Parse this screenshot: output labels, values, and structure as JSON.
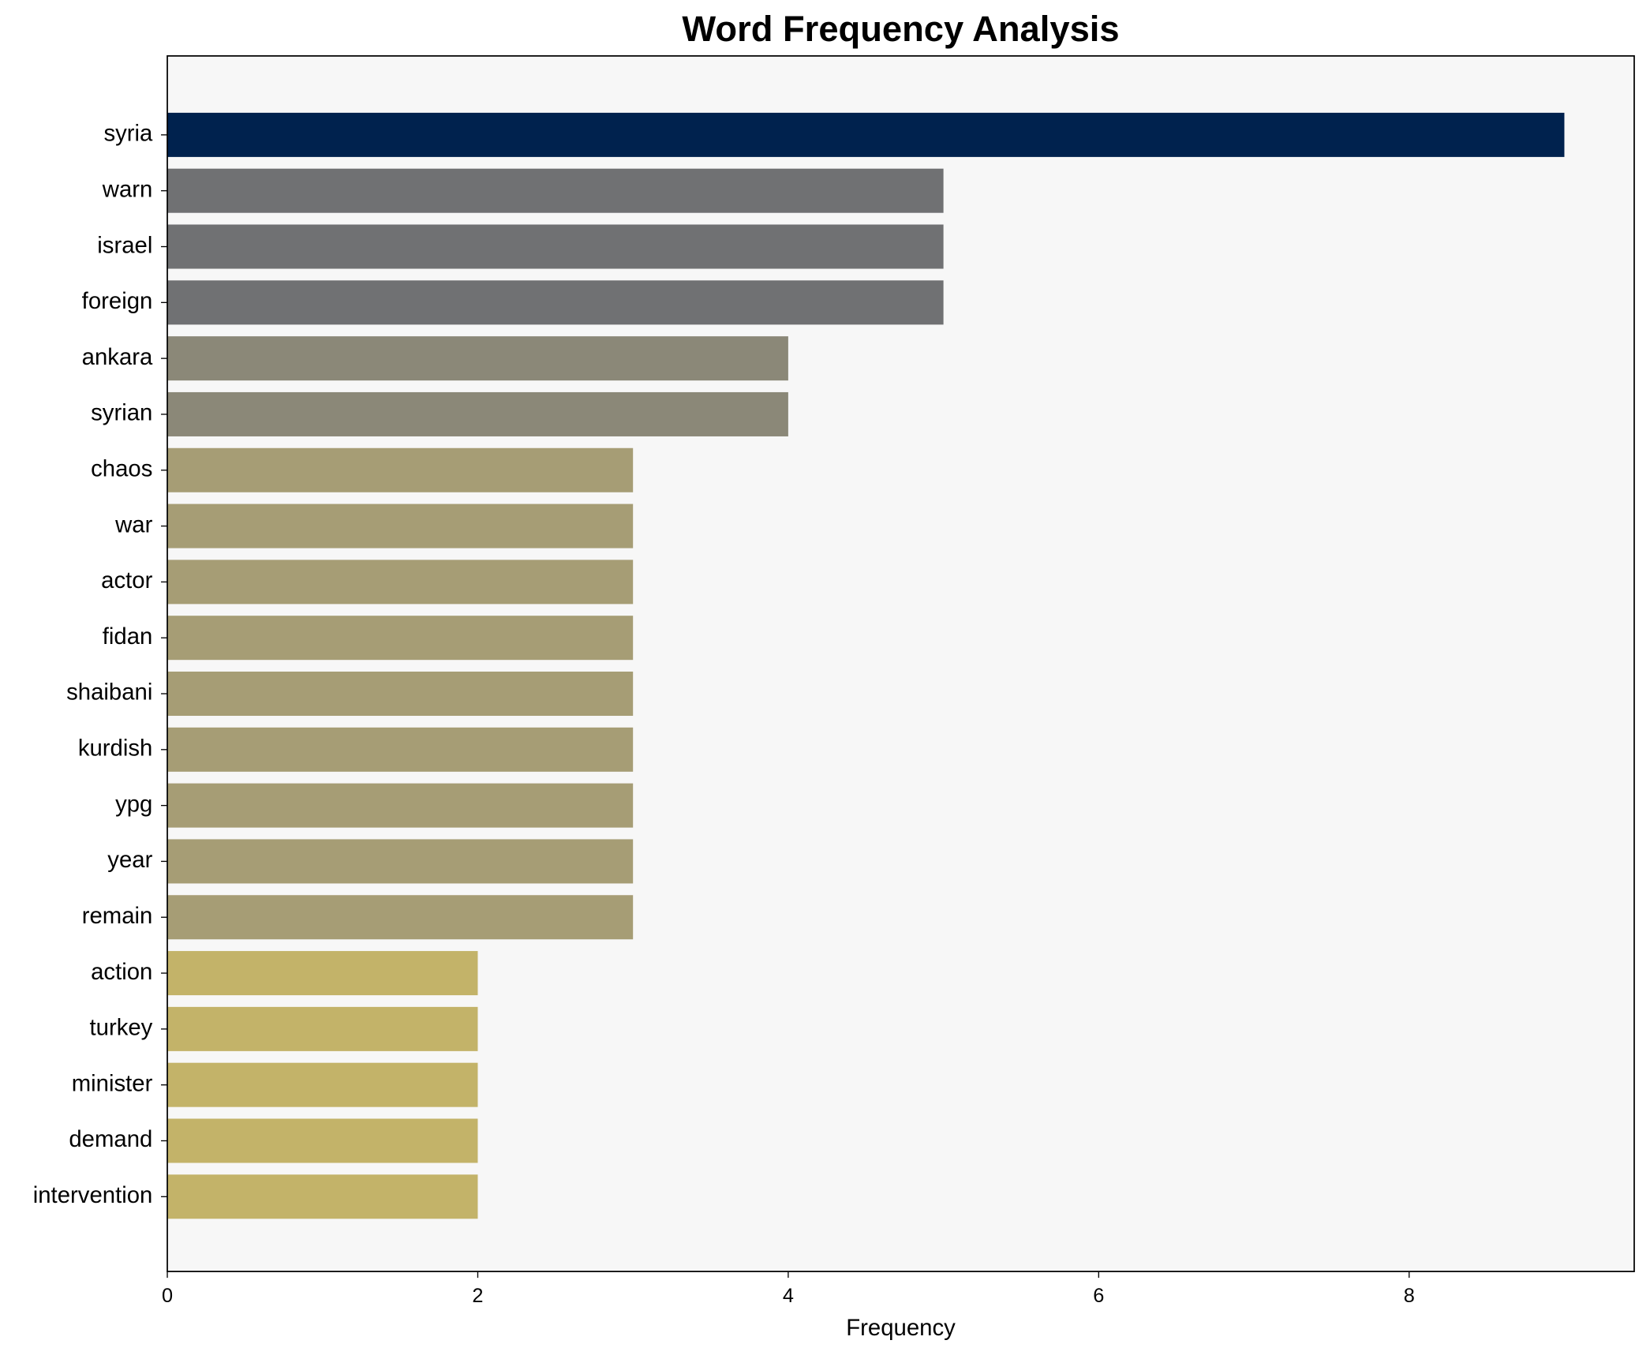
{
  "chart_data": {
    "type": "barh",
    "title": "Word Frequency Analysis",
    "xlabel": "Frequency",
    "categories": [
      "syria",
      "warn",
      "israel",
      "foreign",
      "ankara",
      "syrian",
      "chaos",
      "war",
      "actor",
      "fidan",
      "shaibani",
      "kurdish",
      "ypg",
      "year",
      "remain",
      "action",
      "turkey",
      "minister",
      "demand",
      "intervention"
    ],
    "values": [
      9,
      5,
      5,
      5,
      4,
      4,
      3,
      3,
      3,
      3,
      3,
      3,
      3,
      3,
      3,
      2,
      2,
      2,
      2,
      2
    ],
    "colors": [
      "#00224e",
      "#707173",
      "#707173",
      "#707173",
      "#8b8878",
      "#8b8878",
      "#a69d75",
      "#a69d75",
      "#a69d75",
      "#a69d75",
      "#a69d75",
      "#a69d75",
      "#a69d75",
      "#a69d75",
      "#a69d75",
      "#c3b369",
      "#c3b369",
      "#c3b369",
      "#c3b369",
      "#c3b369"
    ],
    "xlim": [
      0,
      9.45
    ],
    "xticks": [
      0,
      2,
      4,
      6,
      8
    ],
    "background": "#f7f7f7"
  }
}
